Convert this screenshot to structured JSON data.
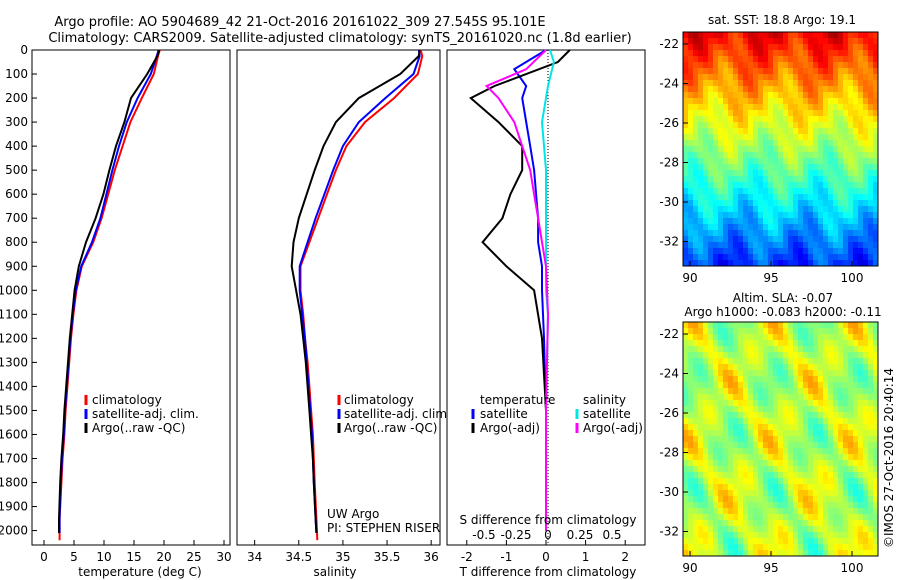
{
  "title_line1": "Argo profile: AO 5904689_42 21-Oct-2016 20161022_309 27.545S 95.101E",
  "title_line2": "Climatology: CARS2009. Satellite-adjusted climatology: synTS_20161020.nc (1.8d earlier)",
  "colors": {
    "climatology": "#ff0000",
    "satellite": "#0000ff",
    "argo": "#000000",
    "satellite_s": "#00e5e5",
    "argo_s": "#ff00ff"
  },
  "y_axis": {
    "ticks": [
      "0",
      "100",
      "200",
      "300",
      "400",
      "500",
      "600",
      "700",
      "800",
      "900",
      "1000",
      "1100",
      "1200",
      "1300",
      "1400",
      "1500",
      "1600",
      "1700",
      "1800",
      "1900",
      "2000"
    ],
    "range": [
      0,
      2060
    ]
  },
  "temperature_panel": {
    "xlabel": "temperature (deg C)",
    "xticks": [
      "0",
      "5",
      "10",
      "15",
      "20",
      "25",
      "30"
    ],
    "legend": [
      "climatology",
      "satellite-adj. clim.",
      "Argo(..raw -QC)"
    ]
  },
  "salinity_panel": {
    "xlabel": "salinity",
    "xticks": [
      "34",
      "34.5",
      "35",
      "35.5",
      "36"
    ],
    "legend": [
      "climatology",
      "satellite-adj. clim.",
      "Argo(..raw -QC)"
    ],
    "note1": "UW Argo",
    "note2": "PI: STEPHEN RISER"
  },
  "difference_panel": {
    "xlabel": "T difference from climatology",
    "top_label": "S difference from climatology",
    "t_ticks": [
      "-2",
      "-1",
      "0",
      "1",
      "2"
    ],
    "s_ticks": [
      "-0.5",
      "-0.25",
      "0",
      "0.25",
      "0.5"
    ],
    "legend_temp_title": "temperature",
    "legend_sal_title": "salinity",
    "legend": [
      "satellite",
      "Argo(-adj)",
      "satellite",
      "Argo(-adj)"
    ]
  },
  "sst_map": {
    "title": "sat. SST: 18.8 Argo: 19.1",
    "yticks": [
      "-22",
      "-24",
      "-26",
      "-28",
      "-30",
      "-32"
    ],
    "xticks": [
      "90",
      "95",
      "100"
    ]
  },
  "sla_map": {
    "title1": "Altim. SLA: -0.07",
    "title2": "Argo h1000: -0.083 h2000: -0.11",
    "yticks": [
      "-22",
      "-24",
      "-26",
      "-28",
      "-30",
      "-32"
    ],
    "xticks": [
      "90",
      "95",
      "100"
    ]
  },
  "credit": "©IMOS 27-Oct-2016 20:40:14",
  "chart_data": [
    {
      "type": "line",
      "xlabel": "temperature (deg C)",
      "xlim": [
        -2,
        31
      ],
      "ylim": [
        2060,
        0
      ],
      "series": [
        {
          "name": "climatology",
          "x": [
            19.3,
            19.0,
            18.3,
            16.3,
            14.4,
            13.1,
            11.8,
            10.7,
            9.6,
            8.2,
            6.3,
            5.4,
            4.9,
            4.5,
            4.2,
            3.9,
            3.6,
            3.4,
            3.1,
            2.9,
            2.6,
            2.6
          ],
          "y": [
            0,
            25,
            100,
            200,
            300,
            400,
            500,
            600,
            700,
            800,
            900,
            1000,
            1100,
            1200,
            1300,
            1400,
            1500,
            1600,
            1700,
            1800,
            1950,
            2040
          ]
        },
        {
          "name": "satellite-adj. clim.",
          "x": [
            19.1,
            18.8,
            17.8,
            15.6,
            13.8,
            12.5,
            11.4,
            10.4,
            9.4,
            8.0,
            6.2,
            5.3,
            4.8,
            4.4,
            4.1,
            3.8,
            3.5,
            3.3,
            3.0,
            2.8,
            2.6,
            2.6
          ],
          "y": [
            0,
            25,
            100,
            200,
            300,
            400,
            500,
            600,
            700,
            800,
            900,
            1000,
            1100,
            1200,
            1300,
            1400,
            1500,
            1600,
            1700,
            1800,
            1950,
            2010
          ]
        },
        {
          "name": "Argo(..raw -QC)",
          "x": [
            19.2,
            18.9,
            17.2,
            14.5,
            13.4,
            12.0,
            10.9,
            9.9,
            8.6,
            7.0,
            5.8,
            5.1,
            4.7,
            4.3,
            4.0,
            3.7,
            3.4,
            3.2,
            2.9,
            2.7,
            2.5,
            2.5
          ],
          "y": [
            0,
            25,
            100,
            200,
            300,
            400,
            500,
            600,
            700,
            800,
            900,
            1000,
            1100,
            1200,
            1300,
            1400,
            1500,
            1600,
            1700,
            1800,
            1950,
            2010
          ]
        }
      ]
    },
    {
      "type": "line",
      "xlabel": "salinity",
      "xlim": [
        33.8,
        36.1
      ],
      "ylim": [
        2060,
        0
      ],
      "series": [
        {
          "name": "climatology",
          "x": [
            35.88,
            35.9,
            35.85,
            35.58,
            35.25,
            35.04,
            34.92,
            34.82,
            34.72,
            34.62,
            34.52,
            34.52,
            34.55,
            34.57,
            34.6,
            34.62,
            34.64,
            34.66,
            34.67,
            34.68,
            34.7,
            34.71
          ],
          "y": [
            0,
            25,
            100,
            200,
            300,
            400,
            500,
            600,
            700,
            800,
            900,
            1000,
            1100,
            1200,
            1300,
            1400,
            1500,
            1600,
            1700,
            1800,
            1950,
            2040
          ]
        },
        {
          "name": "satellite-adj. clim.",
          "x": [
            35.86,
            35.87,
            35.8,
            35.48,
            35.18,
            35.0,
            34.89,
            34.79,
            34.69,
            34.6,
            34.51,
            34.51,
            34.54,
            34.57,
            34.59,
            34.61,
            34.63,
            34.65,
            34.66,
            34.67,
            34.69,
            34.7
          ],
          "y": [
            0,
            25,
            100,
            200,
            300,
            400,
            500,
            600,
            700,
            800,
            900,
            1000,
            1100,
            1200,
            1300,
            1400,
            1500,
            1600,
            1700,
            1800,
            1950,
            2010
          ]
        },
        {
          "name": "Argo(..raw -QC)",
          "x": [
            35.87,
            35.86,
            35.65,
            35.18,
            34.92,
            34.78,
            34.68,
            34.59,
            34.5,
            34.44,
            34.42,
            34.47,
            34.52,
            34.55,
            34.58,
            34.6,
            34.62,
            34.64,
            34.66,
            34.67,
            34.69,
            34.7
          ],
          "y": [
            0,
            25,
            100,
            200,
            300,
            400,
            500,
            600,
            700,
            800,
            900,
            1000,
            1100,
            1200,
            1300,
            1400,
            1500,
            1600,
            1700,
            1800,
            1950,
            2010
          ]
        }
      ]
    },
    {
      "type": "line",
      "xlabel": "T difference from climatology",
      "xlim": [
        -2.5,
        2.5
      ],
      "ylim": [
        2060,
        0
      ],
      "series": [
        {
          "name": "temperature satellite",
          "x": [
            0,
            -0.8,
            -0.5,
            -0.6,
            -0.5,
            -0.4,
            -0.3,
            -0.25,
            -0.2,
            -0.2,
            -0.1,
            -0.1,
            -0.05,
            0,
            0
          ],
          "y": [
            0,
            80,
            150,
            200,
            300,
            400,
            500,
            600,
            700,
            800,
            900,
            1000,
            1200,
            1500,
            2000
          ]
        },
        {
          "name": "temperature Argo(-adj)",
          "x": [
            0.6,
            0.3,
            -1.3,
            -1.9,
            -1.2,
            -0.6,
            -0.6,
            -0.9,
            -1.1,
            -1.6,
            -1.0,
            -0.3,
            -0.1,
            0,
            0
          ],
          "y": [
            0,
            50,
            150,
            200,
            300,
            400,
            500,
            600,
            700,
            800,
            900,
            1000,
            1200,
            1500,
            2000
          ]
        },
        {
          "name": "salinity satellite",
          "x": [
            0.1,
            0.2,
            0.05,
            -0.1,
            -0.05,
            0,
            0,
            0,
            0,
            0,
            0,
            0.05,
            0,
            0
          ],
          "y": [
            0,
            50,
            150,
            300,
            400,
            500,
            600,
            700,
            800,
            900,
            1000,
            1100,
            1500,
            2000
          ]
        },
        {
          "name": "salinity Argo(-adj)",
          "x": [
            0,
            -0.5,
            -1.5,
            -1.2,
            -0.8,
            -0.6,
            -0.4,
            -0.3,
            -0.2,
            -0.1,
            0,
            0.05,
            0,
            0
          ],
          "y": [
            0,
            80,
            150,
            200,
            300,
            400,
            500,
            600,
            700,
            800,
            900,
            1100,
            1500,
            2000
          ]
        }
      ]
    }
  ]
}
